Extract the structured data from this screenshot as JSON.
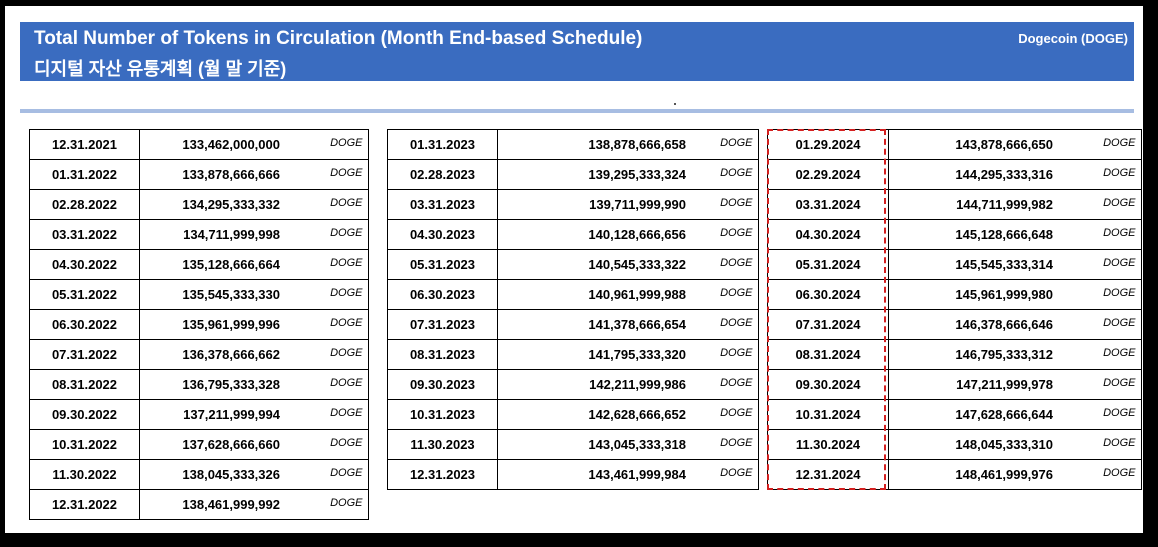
{
  "header": {
    "title_en": "Total Number of Tokens in Circulation (Month End-based Schedule)",
    "title_ko": "디지털 자산 유통계획 (월 말 기준)",
    "coin": "Dogecoin (DOGE)"
  },
  "unit": "DOGE",
  "columns": [
    [
      {
        "date": "12.31.2021",
        "amount": "133,462,000,000"
      },
      {
        "date": "01.31.2022",
        "amount": "133,878,666,666"
      },
      {
        "date": "02.28.2022",
        "amount": "134,295,333,332"
      },
      {
        "date": "03.31.2022",
        "amount": "134,711,999,998"
      },
      {
        "date": "04.30.2022",
        "amount": "135,128,666,664"
      },
      {
        "date": "05.31.2022",
        "amount": "135,545,333,330"
      },
      {
        "date": "06.30.2022",
        "amount": "135,961,999,996"
      },
      {
        "date": "07.31.2022",
        "amount": "136,378,666,662"
      },
      {
        "date": "08.31.2022",
        "amount": "136,795,333,328"
      },
      {
        "date": "09.30.2022",
        "amount": "137,211,999,994"
      },
      {
        "date": "10.31.2022",
        "amount": "137,628,666,660"
      },
      {
        "date": "11.30.2022",
        "amount": "138,045,333,326"
      },
      {
        "date": "12.31.2022",
        "amount": "138,461,999,992"
      }
    ],
    [
      {
        "date": "01.31.2023",
        "amount": "138,878,666,658"
      },
      {
        "date": "02.28.2023",
        "amount": "139,295,333,324"
      },
      {
        "date": "03.31.2023",
        "amount": "139,711,999,990"
      },
      {
        "date": "04.30.2023",
        "amount": "140,128,666,656"
      },
      {
        "date": "05.31.2023",
        "amount": "140,545,333,322"
      },
      {
        "date": "06.30.2023",
        "amount": "140,961,999,988"
      },
      {
        "date": "07.31.2023",
        "amount": "141,378,666,654"
      },
      {
        "date": "08.31.2023",
        "amount": "141,795,333,320"
      },
      {
        "date": "09.30.2023",
        "amount": "142,211,999,986"
      },
      {
        "date": "10.31.2023",
        "amount": "142,628,666,652"
      },
      {
        "date": "11.30.2023",
        "amount": "143,045,333,318"
      },
      {
        "date": "12.31.2023",
        "amount": "143,461,999,984"
      }
    ],
    [
      {
        "date": "01.29.2024",
        "amount": "143,878,666,650"
      },
      {
        "date": "02.29.2024",
        "amount": "144,295,333,316"
      },
      {
        "date": "03.31.2024",
        "amount": "144,711,999,982"
      },
      {
        "date": "04.30.2024",
        "amount": "145,128,666,648"
      },
      {
        "date": "05.31.2024",
        "amount": "145,545,333,314"
      },
      {
        "date": "06.30.2024",
        "amount": "145,961,999,980"
      },
      {
        "date": "07.31.2024",
        "amount": "146,378,666,646"
      },
      {
        "date": "08.31.2024",
        "amount": "146,795,333,312"
      },
      {
        "date": "09.30.2024",
        "amount": "147,211,999,978"
      },
      {
        "date": "10.31.2024",
        "amount": "147,628,666,644"
      },
      {
        "date": "11.30.2024",
        "amount": "148,045,333,310"
      },
      {
        "date": "12.31.2024",
        "amount": "148,461,999,976"
      }
    ]
  ],
  "colors": {
    "banner": "#3a6cc0",
    "highlight": "#d42020",
    "rule": "#a7bde2"
  }
}
